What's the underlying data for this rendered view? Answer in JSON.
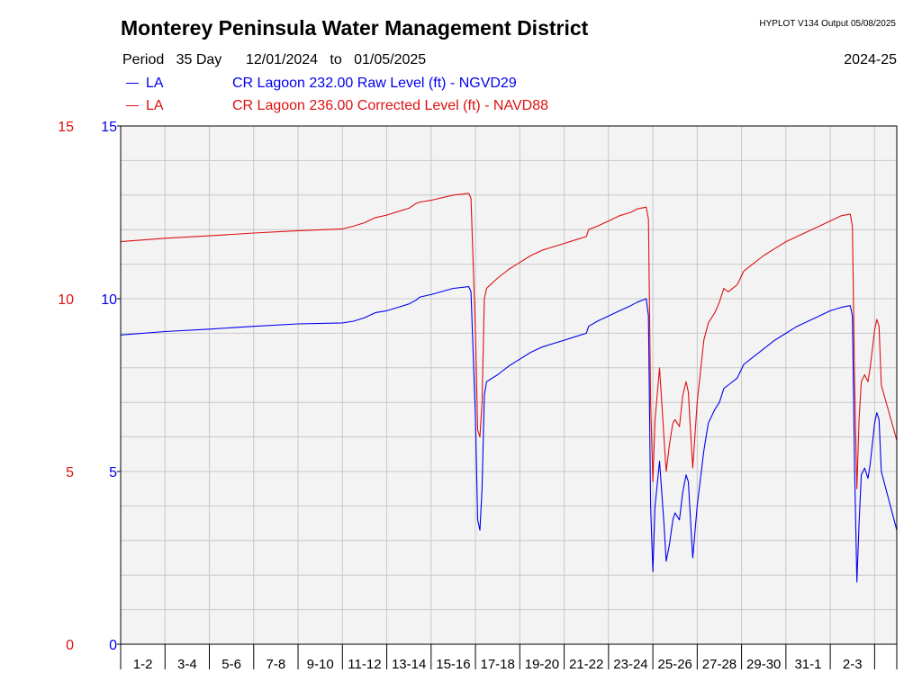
{
  "header": {
    "title": "Monterey Peninsula Water Management District",
    "hyplot": "HYPLOT V134  Output 05/08/2025",
    "period_label": "Period",
    "period_days": "35 Day",
    "date_from": "12/01/2024",
    "date_to_word": "to",
    "date_to": "01/05/2025",
    "season": "2024-25"
  },
  "colors": {
    "raw": "#0000ee",
    "corrected": "#dd1111",
    "plot_bg": "#f3f3f3",
    "grid": "#c8c8c8"
  },
  "chart_data": {
    "type": "line",
    "x_unit": "day index (Dec 1, 2024 = 0)",
    "xlim": [
      0,
      35
    ],
    "x_tick_labels": [
      "1-2",
      "3-4",
      "5-6",
      "7-8",
      "9-10",
      "11-12",
      "13-14",
      "15-16",
      "17-18",
      "19-20",
      "21-22",
      "23-24",
      "25-26",
      "27-28",
      "29-30",
      "31-1",
      "2-3"
    ],
    "y_left": {
      "range": [
        0,
        15
      ],
      "ticks": [
        0,
        5,
        10,
        15
      ],
      "tick_labels": [
        "0",
        "5",
        "10",
        "15"
      ]
    },
    "y_right": {
      "range": [
        0,
        15
      ],
      "ticks": [
        0,
        5,
        10,
        15
      ],
      "tick_labels": [
        "0",
        "5",
        "10",
        "15"
      ]
    },
    "grid": true,
    "series": [
      {
        "code": "LA",
        "name": "CR Lagoon  232.00 Raw Level (ft) - NGVD29",
        "color": "#0000ee",
        "points": [
          [
            0,
            8.95
          ],
          [
            2,
            9.05
          ],
          [
            4,
            9.12
          ],
          [
            6,
            9.2
          ],
          [
            8,
            9.27
          ],
          [
            10,
            9.3
          ],
          [
            10.5,
            9.35
          ],
          [
            11,
            9.45
          ],
          [
            11.5,
            9.6
          ],
          [
            12,
            9.65
          ],
          [
            12.5,
            9.75
          ],
          [
            13,
            9.85
          ],
          [
            13.3,
            9.95
          ],
          [
            13.5,
            10.05
          ],
          [
            14,
            10.12
          ],
          [
            15,
            10.3
          ],
          [
            15.7,
            10.35
          ],
          [
            15.8,
            10.2
          ],
          [
            16,
            6.5
          ],
          [
            16.1,
            3.6
          ],
          [
            16.2,
            3.3
          ],
          [
            16.3,
            4.5
          ],
          [
            16.4,
            7.2
          ],
          [
            16.5,
            7.6
          ],
          [
            17,
            7.8
          ],
          [
            17.5,
            8.05
          ],
          [
            18,
            8.25
          ],
          [
            18.5,
            8.45
          ],
          [
            19,
            8.6
          ],
          [
            19.5,
            8.7
          ],
          [
            20,
            8.8
          ],
          [
            20.5,
            8.9
          ],
          [
            21,
            9.0
          ],
          [
            21.1,
            9.2
          ],
          [
            21.5,
            9.35
          ],
          [
            22,
            9.5
          ],
          [
            22.5,
            9.65
          ],
          [
            23,
            9.8
          ],
          [
            23.3,
            9.9
          ],
          [
            23.7,
            10.0
          ],
          [
            23.8,
            9.5
          ],
          [
            23.9,
            4
          ],
          [
            24.0,
            2.1
          ],
          [
            24.1,
            4.0
          ],
          [
            24.3,
            5.3
          ],
          [
            24.5,
            3.5
          ],
          [
            24.6,
            2.4
          ],
          [
            24.75,
            2.9
          ],
          [
            24.9,
            3.6
          ],
          [
            25.0,
            3.8
          ],
          [
            25.2,
            3.6
          ],
          [
            25.35,
            4.4
          ],
          [
            25.5,
            4.9
          ],
          [
            25.6,
            4.7
          ],
          [
            25.75,
            3.0
          ],
          [
            25.8,
            2.5
          ],
          [
            26,
            4
          ],
          [
            26.3,
            5.6
          ],
          [
            26.5,
            6.4
          ],
          [
            26.8,
            6.8
          ],
          [
            27.0,
            7.0
          ],
          [
            27.2,
            7.4
          ],
          [
            27.4,
            7.5
          ],
          [
            27.8,
            7.7
          ],
          [
            28.1,
            8.1
          ],
          [
            28.5,
            8.3
          ],
          [
            29,
            8.55
          ],
          [
            29.5,
            8.8
          ],
          [
            30,
            9.0
          ],
          [
            30.5,
            9.2
          ],
          [
            31,
            9.35
          ],
          [
            31.5,
            9.5
          ],
          [
            32,
            9.65
          ],
          [
            32.5,
            9.75
          ],
          [
            32.9,
            9.8
          ],
          [
            33.0,
            9.5
          ],
          [
            33.1,
            5
          ],
          [
            33.2,
            1.8
          ],
          [
            33.3,
            3.5
          ],
          [
            33.4,
            4.9
          ],
          [
            33.55,
            5.1
          ],
          [
            33.7,
            4.8
          ],
          [
            33.8,
            5.2
          ],
          [
            34,
            6.4
          ],
          [
            34.1,
            6.7
          ],
          [
            34.2,
            6.5
          ],
          [
            34.3,
            5.0
          ],
          [
            35,
            3.3
          ]
        ]
      },
      {
        "code": "LA",
        "name": "CR Lagoon  236.00 Corrected Level (ft) - NAVD88",
        "color": "#dd1111",
        "points": [
          [
            0,
            11.65
          ],
          [
            2,
            11.75
          ],
          [
            4,
            11.82
          ],
          [
            6,
            11.9
          ],
          [
            8,
            11.97
          ],
          [
            10,
            12.02
          ],
          [
            10.5,
            12.1
          ],
          [
            11,
            12.2
          ],
          [
            11.5,
            12.35
          ],
          [
            12,
            12.42
          ],
          [
            12.5,
            12.52
          ],
          [
            13,
            12.62
          ],
          [
            13.3,
            12.75
          ],
          [
            13.5,
            12.8
          ],
          [
            14,
            12.85
          ],
          [
            15,
            13.0
          ],
          [
            15.7,
            13.05
          ],
          [
            15.8,
            12.9
          ],
          [
            16,
            9.0
          ],
          [
            16.1,
            6.2
          ],
          [
            16.2,
            6.0
          ],
          [
            16.3,
            7.0
          ],
          [
            16.4,
            10.0
          ],
          [
            16.5,
            10.3
          ],
          [
            17,
            10.6
          ],
          [
            17.5,
            10.85
          ],
          [
            18,
            11.05
          ],
          [
            18.5,
            11.25
          ],
          [
            19,
            11.4
          ],
          [
            19.5,
            11.5
          ],
          [
            20,
            11.6
          ],
          [
            20.5,
            11.7
          ],
          [
            21,
            11.8
          ],
          [
            21.1,
            12.0
          ],
          [
            21.5,
            12.1
          ],
          [
            22,
            12.25
          ],
          [
            22.5,
            12.4
          ],
          [
            23,
            12.5
          ],
          [
            23.3,
            12.6
          ],
          [
            23.7,
            12.65
          ],
          [
            23.8,
            12.3
          ],
          [
            23.9,
            7.0
          ],
          [
            24.0,
            4.7
          ],
          [
            24.1,
            6.5
          ],
          [
            24.3,
            8.0
          ],
          [
            24.5,
            6.0
          ],
          [
            24.6,
            5.0
          ],
          [
            24.75,
            5.8
          ],
          [
            24.9,
            6.4
          ],
          [
            25.0,
            6.5
          ],
          [
            25.2,
            6.3
          ],
          [
            25.35,
            7.2
          ],
          [
            25.5,
            7.6
          ],
          [
            25.6,
            7.3
          ],
          [
            25.75,
            5.6
          ],
          [
            25.8,
            5.1
          ],
          [
            26,
            7.0
          ],
          [
            26.3,
            8.8
          ],
          [
            26.5,
            9.3
          ],
          [
            26.8,
            9.6
          ],
          [
            27.0,
            9.9
          ],
          [
            27.2,
            10.3
          ],
          [
            27.4,
            10.2
          ],
          [
            27.8,
            10.4
          ],
          [
            28.1,
            10.8
          ],
          [
            28.5,
            11.0
          ],
          [
            29,
            11.25
          ],
          [
            29.5,
            11.45
          ],
          [
            30,
            11.65
          ],
          [
            30.5,
            11.8
          ],
          [
            31,
            11.95
          ],
          [
            31.5,
            12.1
          ],
          [
            32,
            12.25
          ],
          [
            32.5,
            12.4
          ],
          [
            32.9,
            12.45
          ],
          [
            33.0,
            12.1
          ],
          [
            33.1,
            7.5
          ],
          [
            33.2,
            4.5
          ],
          [
            33.3,
            6.5
          ],
          [
            33.4,
            7.6
          ],
          [
            33.55,
            7.8
          ],
          [
            33.7,
            7.6
          ],
          [
            33.8,
            8.0
          ],
          [
            34,
            9.1
          ],
          [
            34.1,
            9.4
          ],
          [
            34.2,
            9.2
          ],
          [
            34.3,
            7.5
          ],
          [
            35,
            5.9
          ]
        ]
      }
    ]
  }
}
